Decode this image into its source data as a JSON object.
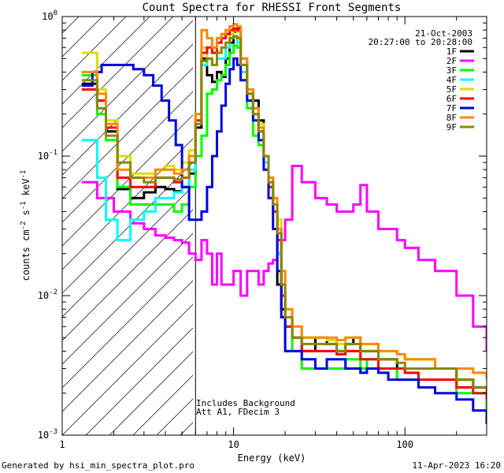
{
  "footer": {
    "left": "Generated by hsi_min_spectra_plot.pro",
    "right": "11-Apr-2023 16:20"
  },
  "chart_data": {
    "type": "line",
    "title": "Count Spectra for RHESSI Front Segments",
    "xlabel": "Energy (keV)",
    "ylabel_parts": {
      "base": "counts cm",
      "exp1": "-2",
      "mid1": " s",
      "exp2": "-1",
      "mid2": " keV",
      "exp3": "-1"
    },
    "x_scale": "log",
    "y_scale": "log",
    "xlim": [
      1,
      300
    ],
    "ylim": [
      0.001,
      1
    ],
    "x_ticks": [
      {
        "v": 1,
        "label": "1"
      },
      {
        "v": 10,
        "label": "10"
      },
      {
        "v": 100,
        "label": "100"
      }
    ],
    "y_ticks": [
      {
        "v": 1,
        "base": "10",
        "exp": "0"
      },
      {
        "v": 0.1,
        "base": "10",
        "exp": "-1"
      },
      {
        "v": 0.01,
        "base": "10",
        "exp": "-2"
      },
      {
        "v": 0.001,
        "base": "10",
        "exp": "-3"
      }
    ],
    "date": "21-Oct-2003",
    "time_range": "20:27:00 to 20:28:00",
    "annotation_lines": [
      "Includes Background",
      "Att A1, FDecim 3"
    ],
    "excluded_region_below_keV": 6,
    "series": [
      {
        "name": "1F",
        "color": "#000000",
        "x": [
          1.3,
          1.6,
          1.8,
          2.1,
          2.5,
          3,
          3.5,
          4,
          4.5,
          5,
          5.5,
          6,
          6.5,
          7,
          7.5,
          8,
          8.5,
          9,
          9.5,
          10,
          10.5,
          11,
          12,
          13,
          14,
          15,
          16,
          17,
          18,
          19,
          20,
          22,
          25,
          30,
          35,
          40,
          45,
          50,
          55,
          60,
          70,
          80,
          90,
          100,
          120,
          150,
          200,
          250,
          300
        ],
        "y": [
          0.33,
          0.25,
          0.15,
          0.058,
          0.05,
          0.055,
          0.06,
          0.058,
          0.056,
          0.06,
          0.075,
          0.16,
          0.5,
          0.38,
          0.34,
          0.4,
          0.37,
          0.5,
          0.65,
          0.78,
          0.82,
          0.5,
          0.3,
          0.25,
          0.18,
          0.1,
          0.07,
          0.04,
          0.012,
          0.008,
          0.006,
          0.005,
          0.004,
          0.005,
          0.0045,
          0.004,
          0.0045,
          0.005,
          0.004,
          0.004,
          0.0035,
          0.0035,
          0.003,
          0.003,
          0.003,
          0.003,
          0.0025,
          0.0022,
          0.002
        ]
      },
      {
        "name": "2F",
        "color": "#ff00ff",
        "x": [
          1.3,
          1.6,
          2,
          2.5,
          3,
          3.5,
          4,
          4.5,
          5,
          5.5,
          6,
          6.5,
          7,
          7.5,
          8,
          8.5,
          9,
          10,
          11,
          12,
          13,
          14,
          15,
          16,
          17,
          18,
          19,
          20,
          22,
          25,
          30,
          35,
          40,
          50,
          55,
          60,
          70,
          80,
          90,
          100,
          120,
          150,
          200,
          250,
          300
        ],
        "y": [
          0.065,
          0.05,
          0.04,
          0.033,
          0.03,
          0.027,
          0.026,
          0.025,
          0.024,
          0.02,
          0.018,
          0.025,
          0.02,
          0.012,
          0.02,
          0.012,
          0.012,
          0.015,
          0.01,
          0.015,
          0.015,
          0.012,
          0.015,
          0.017,
          0.018,
          0.02,
          0.025,
          0.035,
          0.085,
          0.065,
          0.05,
          0.045,
          0.04,
          0.045,
          0.062,
          0.04,
          0.03,
          0.03,
          0.025,
          0.022,
          0.018,
          0.015,
          0.01,
          0.006,
          0.004
        ]
      },
      {
        "name": "3F",
        "color": "#00ff00",
        "x": [
          1.3,
          1.6,
          1.8,
          2.1,
          2.5,
          3,
          3.5,
          4,
          4.5,
          5,
          5.5,
          6,
          6.5,
          7,
          7.5,
          8,
          8.5,
          9,
          9.5,
          10,
          10.5,
          11,
          12,
          13,
          14,
          15,
          16,
          17,
          18,
          19,
          20,
          22,
          25,
          30,
          35,
          40,
          45,
          50,
          55,
          60,
          70,
          80,
          90,
          100,
          120,
          150,
          200,
          250,
          300
        ],
        "y": [
          0.38,
          0.2,
          0.13,
          0.06,
          0.045,
          0.045,
          0.045,
          0.045,
          0.04,
          0.045,
          0.06,
          0.1,
          0.14,
          0.28,
          0.3,
          0.35,
          0.38,
          0.45,
          0.55,
          0.62,
          0.6,
          0.35,
          0.22,
          0.14,
          0.12,
          0.1,
          0.06,
          0.04,
          0.03,
          0.012,
          0.006,
          0.004,
          0.003,
          0.003,
          0.003,
          0.003,
          0.0035,
          0.0035,
          0.003,
          0.0035,
          0.003,
          0.003,
          0.0025,
          0.0025,
          0.0025,
          0.0025,
          0.002,
          0.002,
          0.0015
        ]
      },
      {
        "name": "4F",
        "color": "#00ffff",
        "x": [
          1.3,
          1.6,
          1.8,
          2.1,
          2.5,
          3,
          3.5,
          4,
          4.5,
          5,
          5.5,
          6,
          6.5,
          7,
          7.5,
          8,
          8.5,
          9,
          9.5,
          10,
          10.5,
          11,
          12,
          13,
          14,
          15,
          16,
          17,
          18,
          19,
          20,
          22,
          25,
          30,
          35,
          40,
          45,
          50,
          55,
          60,
          70,
          80,
          90,
          100,
          120,
          150,
          200,
          250,
          300
        ],
        "y": [
          0.13,
          0.07,
          0.035,
          0.025,
          0.035,
          0.04,
          0.05,
          0.05,
          0.055,
          0.06,
          0.08,
          0.2,
          0.45,
          0.5,
          0.45,
          0.5,
          0.5,
          0.6,
          0.7,
          0.72,
          0.65,
          0.4,
          0.25,
          0.2,
          0.15,
          0.09,
          0.06,
          0.04,
          0.02,
          0.01,
          0.006,
          0.005,
          0.004,
          0.004,
          0.004,
          0.0038,
          0.004,
          0.004,
          0.0035,
          0.0035,
          0.003,
          0.003,
          0.003,
          0.0028,
          0.0025,
          0.0025,
          0.0022,
          0.002,
          0.0018
        ]
      },
      {
        "name": "5F",
        "color": "#dddd00",
        "x": [
          1.3,
          1.6,
          1.8,
          2.1,
          2.5,
          3,
          3.5,
          4,
          4.5,
          5,
          5.5,
          6,
          6.5,
          7,
          7.5,
          8,
          8.5,
          9,
          9.5,
          10,
          10.5,
          11,
          12,
          13,
          14,
          15,
          16,
          17,
          18,
          19,
          20,
          22,
          25,
          30,
          35,
          40,
          45,
          50,
          55,
          60,
          70,
          80,
          90,
          100,
          120,
          150,
          200,
          250,
          300
        ],
        "y": [
          0.55,
          0.3,
          0.18,
          0.1,
          0.075,
          0.075,
          0.08,
          0.085,
          0.08,
          0.09,
          0.11,
          0.2,
          0.6,
          0.5,
          0.45,
          0.55,
          0.6,
          0.65,
          0.75,
          0.8,
          0.78,
          0.5,
          0.3,
          0.22,
          0.17,
          0.1,
          0.07,
          0.05,
          0.035,
          0.015,
          0.008,
          0.006,
          0.005,
          0.005,
          0.0048,
          0.0045,
          0.005,
          0.005,
          0.0045,
          0.0045,
          0.004,
          0.004,
          0.0038,
          0.0035,
          0.0035,
          0.003,
          0.003,
          0.0028,
          0.0025
        ]
      },
      {
        "name": "6F",
        "color": "#ff0000",
        "x": [
          1.3,
          1.6,
          1.8,
          2.1,
          2.5,
          3,
          3.5,
          4,
          4.5,
          5,
          5.5,
          6,
          6.5,
          7,
          7.5,
          8,
          8.5,
          9,
          9.5,
          10,
          10.5,
          11,
          12,
          13,
          14,
          15,
          16,
          17,
          18,
          19,
          20,
          22,
          25,
          30,
          35,
          40,
          45,
          50,
          55,
          60,
          70,
          80,
          90,
          100,
          120,
          150,
          200,
          250,
          300
        ],
        "y": [
          0.3,
          0.25,
          0.16,
          0.07,
          0.06,
          0.06,
          0.07,
          0.07,
          0.065,
          0.07,
          0.09,
          0.18,
          0.55,
          0.6,
          0.55,
          0.65,
          0.7,
          0.75,
          0.8,
          0.82,
          0.8,
          0.45,
          0.28,
          0.2,
          0.15,
          0.1,
          0.06,
          0.04,
          0.025,
          0.01,
          0.006,
          0.005,
          0.004,
          0.004,
          0.004,
          0.0038,
          0.004,
          0.004,
          0.0035,
          0.0035,
          0.003,
          0.003,
          0.003,
          0.0028,
          0.0025,
          0.0025,
          0.0022,
          0.002,
          0.0018
        ]
      },
      {
        "name": "7F",
        "color": "#0000dd",
        "x": [
          1.3,
          1.5,
          1.7,
          2,
          2.3,
          2.6,
          3,
          3.4,
          3.8,
          4.2,
          4.6,
          5,
          5.5,
          6,
          6.5,
          7,
          7.5,
          8,
          8.5,
          9,
          9.5,
          10,
          10.5,
          11,
          12,
          13,
          14,
          15,
          16,
          17,
          18,
          19,
          20,
          22,
          25,
          30,
          35,
          40,
          45,
          50,
          55,
          60,
          70,
          80,
          90,
          100,
          120,
          150,
          200,
          250,
          300
        ],
        "y": [
          0.32,
          0.4,
          0.45,
          0.45,
          0.45,
          0.42,
          0.38,
          0.32,
          0.25,
          0.18,
          0.12,
          0.06,
          0.035,
          0.035,
          0.04,
          0.06,
          0.1,
          0.15,
          0.23,
          0.33,
          0.42,
          0.5,
          0.45,
          0.35,
          0.25,
          0.18,
          0.13,
          0.08,
          0.05,
          0.03,
          0.015,
          0.007,
          0.004,
          0.004,
          0.0035,
          0.003,
          0.0035,
          0.0035,
          0.003,
          0.003,
          0.0028,
          0.003,
          0.0028,
          0.0025,
          0.0025,
          0.0025,
          0.0022,
          0.002,
          0.0018,
          0.0015,
          0.0012
        ]
      },
      {
        "name": "8F",
        "color": "#ff8800",
        "x": [
          1.3,
          1.6,
          1.8,
          2.1,
          2.5,
          3,
          3.5,
          4,
          4.5,
          5,
          5.5,
          6,
          6.5,
          7,
          7.5,
          8,
          8.5,
          9,
          9.5,
          10,
          10.5,
          11,
          12,
          13,
          14,
          15,
          16,
          17,
          18,
          19,
          20,
          22,
          25,
          30,
          35,
          40,
          45,
          50,
          55,
          60,
          70,
          80,
          90,
          100,
          120,
          150,
          200,
          250,
          300
        ],
        "y": [
          0.4,
          0.28,
          0.17,
          0.08,
          0.07,
          0.07,
          0.08,
          0.08,
          0.075,
          0.08,
          0.1,
          0.2,
          0.8,
          0.7,
          0.6,
          0.7,
          0.75,
          0.8,
          0.85,
          0.88,
          0.85,
          0.5,
          0.3,
          0.22,
          0.16,
          0.1,
          0.07,
          0.05,
          0.03,
          0.015,
          0.008,
          0.006,
          0.005,
          0.005,
          0.005,
          0.0048,
          0.005,
          0.005,
          0.0045,
          0.0045,
          0.004,
          0.004,
          0.0038,
          0.0035,
          0.0035,
          0.003,
          0.003,
          0.0028,
          0.0025
        ]
      },
      {
        "name": "9F",
        "color": "#888800",
        "x": [
          1.3,
          1.6,
          1.8,
          2.1,
          2.5,
          3,
          3.5,
          4,
          4.5,
          5,
          5.5,
          6,
          6.5,
          7,
          7.5,
          8,
          8.5,
          9,
          9.5,
          10,
          10.5,
          11,
          12,
          13,
          14,
          15,
          16,
          17,
          18,
          19,
          20,
          22,
          25,
          30,
          35,
          40,
          45,
          50,
          55,
          60,
          70,
          80,
          90,
          100,
          120,
          150,
          200,
          250,
          300
        ],
        "y": [
          0.35,
          0.22,
          0.14,
          0.09,
          0.07,
          0.065,
          0.07,
          0.07,
          0.068,
          0.07,
          0.09,
          0.17,
          0.48,
          0.5,
          0.45,
          0.55,
          0.6,
          0.65,
          0.7,
          0.72,
          0.7,
          0.45,
          0.28,
          0.2,
          0.15,
          0.1,
          0.065,
          0.045,
          0.028,
          0.012,
          0.007,
          0.005,
          0.0045,
          0.0045,
          0.0045,
          0.004,
          0.0045,
          0.0045,
          0.004,
          0.004,
          0.0035,
          0.0035,
          0.0033,
          0.003,
          0.003,
          0.003,
          0.0025,
          0.0022,
          0.002
        ]
      }
    ]
  }
}
